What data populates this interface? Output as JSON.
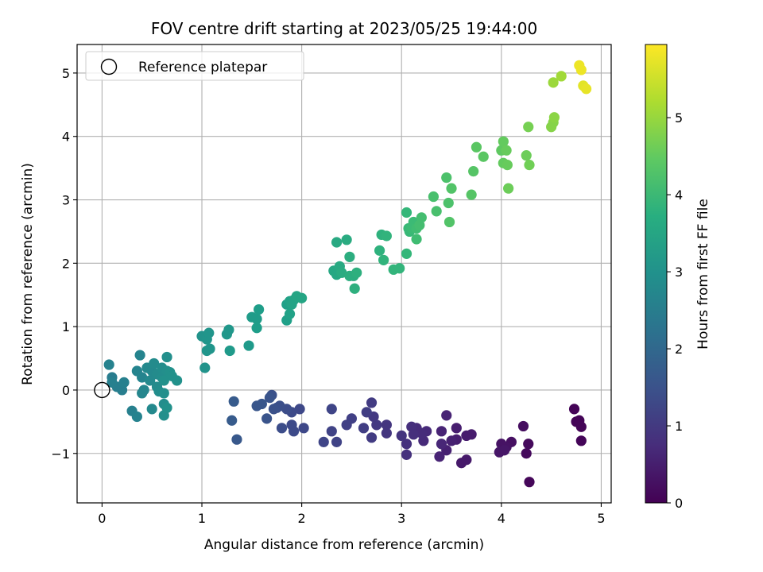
{
  "chart_data": {
    "type": "scatter",
    "title": "FOV centre drift starting at 2023/05/25 19:44:00",
    "xlabel": "Angular distance from reference (arcmin)",
    "ylabel": "Rotation from reference (arcmin)",
    "xlim": [
      -0.25,
      5.1
    ],
    "ylim": [
      -1.78,
      5.45
    ],
    "xticks": [
      0,
      1,
      2,
      3,
      4,
      5
    ],
    "yticks": [
      -1,
      0,
      1,
      2,
      3,
      4,
      5
    ],
    "grid": true,
    "colormap": "viridis",
    "colorbar": {
      "label": "Hours from first FF file",
      "range": [
        0,
        5.95
      ],
      "ticks": [
        0,
        1,
        2,
        3,
        4,
        5
      ]
    },
    "legend": {
      "location": "upper-left",
      "entries": [
        "Reference platepar"
      ]
    },
    "reference_point": {
      "x": 0,
      "y": 0
    },
    "points": [
      [
        4.73,
        -0.3,
        0.05
      ],
      [
        4.75,
        -0.5,
        0.05
      ],
      [
        4.78,
        -0.48,
        0.05
      ],
      [
        4.8,
        -0.58,
        0.06
      ],
      [
        4.8,
        -0.8,
        0.07
      ],
      [
        4.28,
        -1.45,
        0.1
      ],
      [
        4.25,
        -1.0,
        0.15
      ],
      [
        4.27,
        -0.85,
        0.15
      ],
      [
        4.22,
        -0.57,
        0.2
      ],
      [
        4.1,
        -0.82,
        0.25
      ],
      [
        4.05,
        -0.9,
        0.3
      ],
      [
        4.0,
        -0.85,
        0.3
      ],
      [
        3.98,
        -0.98,
        0.35
      ],
      [
        4.03,
        -0.95,
        0.35
      ],
      [
        3.6,
        -1.15,
        0.4
      ],
      [
        3.65,
        -1.1,
        0.4
      ],
      [
        3.7,
        -0.7,
        0.45
      ],
      [
        3.65,
        -0.72,
        0.45
      ],
      [
        3.55,
        -0.6,
        0.5
      ],
      [
        3.55,
        -0.78,
        0.5
      ],
      [
        3.5,
        -0.8,
        0.55
      ],
      [
        3.45,
        -0.95,
        0.55
      ],
      [
        3.45,
        -0.4,
        0.6
      ],
      [
        3.38,
        -1.05,
        0.6
      ],
      [
        3.4,
        -0.65,
        0.6
      ],
      [
        3.4,
        -0.85,
        0.65
      ],
      [
        3.25,
        -0.65,
        0.7
      ],
      [
        3.22,
        -0.8,
        0.7
      ],
      [
        3.2,
        -0.68,
        0.75
      ],
      [
        3.15,
        -0.6,
        0.75
      ],
      [
        3.1,
        -0.58,
        0.8
      ],
      [
        3.12,
        -0.7,
        0.8
      ],
      [
        3.05,
        -0.85,
        0.85
      ],
      [
        3.05,
        -1.02,
        0.85
      ],
      [
        3.0,
        -0.72,
        0.9
      ],
      [
        2.85,
        -0.68,
        0.95
      ],
      [
        2.85,
        -0.55,
        0.95
      ],
      [
        2.75,
        -0.55,
        1.0
      ],
      [
        2.72,
        -0.42,
        1.0
      ],
      [
        2.7,
        -0.75,
        1.05
      ],
      [
        2.7,
        -0.2,
        1.05
      ],
      [
        2.65,
        -0.35,
        1.1
      ],
      [
        2.62,
        -0.6,
        1.1
      ],
      [
        2.5,
        -0.45,
        1.15
      ],
      [
        2.45,
        -0.55,
        1.15
      ],
      [
        2.35,
        -0.82,
        1.2
      ],
      [
        2.3,
        -0.65,
        1.2
      ],
      [
        2.3,
        -0.3,
        1.25
      ],
      [
        2.22,
        -0.82,
        1.25
      ],
      [
        2.02,
        -0.6,
        1.3
      ],
      [
        1.98,
        -0.3,
        1.3
      ],
      [
        1.9,
        -0.35,
        1.35
      ],
      [
        1.9,
        -0.55,
        1.35
      ],
      [
        1.92,
        -0.65,
        1.35
      ],
      [
        1.85,
        -0.3,
        1.4
      ],
      [
        1.8,
        -0.6,
        1.4
      ],
      [
        1.78,
        -0.25,
        1.45
      ],
      [
        1.75,
        -0.28,
        1.45
      ],
      [
        1.72,
        -0.3,
        1.5
      ],
      [
        1.7,
        -0.08,
        1.5
      ],
      [
        1.68,
        -0.12,
        1.55
      ],
      [
        1.65,
        -0.45,
        1.55
      ],
      [
        1.6,
        -0.22,
        1.6
      ],
      [
        1.55,
        -0.25,
        1.6
      ],
      [
        1.35,
        -0.78,
        1.65
      ],
      [
        1.3,
        -0.48,
        1.7
      ],
      [
        1.32,
        -0.18,
        1.7
      ],
      [
        0.1,
        0.2,
        2.5
      ],
      [
        0.15,
        0.05,
        2.55
      ],
      [
        0.2,
        0.0,
        2.55
      ],
      [
        0.22,
        0.12,
        2.6
      ],
      [
        0.1,
        0.12,
        2.6
      ],
      [
        0.07,
        0.4,
        2.65
      ],
      [
        0.3,
        -0.33,
        2.6
      ],
      [
        0.35,
        -0.42,
        2.65
      ],
      [
        0.38,
        0.55,
        2.7
      ],
      [
        0.35,
        0.3,
        2.7
      ],
      [
        0.4,
        0.2,
        2.7
      ],
      [
        0.42,
        0.0,
        2.75
      ],
      [
        0.4,
        -0.05,
        2.75
      ],
      [
        0.45,
        0.35,
        2.8
      ],
      [
        0.48,
        0.15,
        2.8
      ],
      [
        0.5,
        0.3,
        2.8
      ],
      [
        0.5,
        -0.3,
        2.8
      ],
      [
        0.52,
        0.42,
        2.85
      ],
      [
        0.55,
        0.25,
        2.85
      ],
      [
        0.55,
        0.05,
        2.85
      ],
      [
        0.57,
        -0.02,
        2.9
      ],
      [
        0.6,
        0.2,
        2.9
      ],
      [
        0.6,
        0.35,
        2.9
      ],
      [
        0.62,
        -0.22,
        2.9
      ],
      [
        0.62,
        -0.4,
        2.95
      ],
      [
        0.62,
        -0.05,
        2.95
      ],
      [
        0.65,
        0.3,
        2.95
      ],
      [
        0.65,
        0.52,
        2.95
      ],
      [
        0.65,
        -0.28,
        3.0
      ],
      [
        0.68,
        0.28,
        3.0
      ],
      [
        0.7,
        0.22,
        3.0
      ],
      [
        0.75,
        0.15,
        3.0
      ],
      [
        0.62,
        0.15,
        3.0
      ],
      [
        1.03,
        0.35,
        3.05
      ],
      [
        1.0,
        0.85,
        3.05
      ],
      [
        1.05,
        0.8,
        3.1
      ],
      [
        1.05,
        0.62,
        3.1
      ],
      [
        1.07,
        0.9,
        3.1
      ],
      [
        1.08,
        0.65,
        3.1
      ],
      [
        1.25,
        0.88,
        3.15
      ],
      [
        1.27,
        0.95,
        3.15
      ],
      [
        1.28,
        0.62,
        3.2
      ],
      [
        1.47,
        0.7,
        3.2
      ],
      [
        1.5,
        1.15,
        3.25
      ],
      [
        1.55,
        1.12,
        3.25
      ],
      [
        1.55,
        0.98,
        3.3
      ],
      [
        1.57,
        1.27,
        3.3
      ],
      [
        1.85,
        1.35,
        3.35
      ],
      [
        1.85,
        1.1,
        3.35
      ],
      [
        1.88,
        1.4,
        3.4
      ],
      [
        1.88,
        1.2,
        3.4
      ],
      [
        1.9,
        1.35,
        3.45
      ],
      [
        1.92,
        1.42,
        3.45
      ],
      [
        1.95,
        1.48,
        3.5
      ],
      [
        2.0,
        1.45,
        3.5
      ],
      [
        2.32,
        1.88,
        3.55
      ],
      [
        2.35,
        1.82,
        3.55
      ],
      [
        2.35,
        2.33,
        3.6
      ],
      [
        2.38,
        1.95,
        3.6
      ],
      [
        2.4,
        1.85,
        3.65
      ],
      [
        2.45,
        2.37,
        3.65
      ],
      [
        2.48,
        1.8,
        3.7
      ],
      [
        2.48,
        2.1,
        3.7
      ],
      [
        2.52,
        1.8,
        3.7
      ],
      [
        2.53,
        1.6,
        3.75
      ],
      [
        2.55,
        1.85,
        3.75
      ],
      [
        2.78,
        2.2,
        3.8
      ],
      [
        2.8,
        2.45,
        3.8
      ],
      [
        2.82,
        2.05,
        3.85
      ],
      [
        2.85,
        2.43,
        3.85
      ],
      [
        2.92,
        1.9,
        3.9
      ],
      [
        2.98,
        1.92,
        3.9
      ],
      [
        3.05,
        2.15,
        3.95
      ],
      [
        3.05,
        2.8,
        3.95
      ],
      [
        3.07,
        2.55,
        4.0
      ],
      [
        3.08,
        2.5,
        4.0
      ],
      [
        3.1,
        2.55,
        4.05
      ],
      [
        3.12,
        2.65,
        4.05
      ],
      [
        3.15,
        2.38,
        4.1
      ],
      [
        3.15,
        2.55,
        4.1
      ],
      [
        3.18,
        2.6,
        4.15
      ],
      [
        3.2,
        2.72,
        4.15
      ],
      [
        3.32,
        3.05,
        4.2
      ],
      [
        3.35,
        2.82,
        4.2
      ],
      [
        3.45,
        3.35,
        4.25
      ],
      [
        3.47,
        2.95,
        4.25
      ],
      [
        3.48,
        2.65,
        4.3
      ],
      [
        3.5,
        3.18,
        4.3
      ],
      [
        3.7,
        3.08,
        4.35
      ],
      [
        3.72,
        3.45,
        4.35
      ],
      [
        3.75,
        3.83,
        4.4
      ],
      [
        3.82,
        3.68,
        4.4
      ],
      [
        4.0,
        3.78,
        4.45
      ],
      [
        4.02,
        3.92,
        4.5
      ],
      [
        4.02,
        3.58,
        4.5
      ],
      [
        4.05,
        3.78,
        4.55
      ],
      [
        4.06,
        3.55,
        4.55
      ],
      [
        4.07,
        3.18,
        4.6
      ],
      [
        4.25,
        3.7,
        4.6
      ],
      [
        4.28,
        3.55,
        4.65
      ],
      [
        4.27,
        4.15,
        4.7
      ],
      [
        4.5,
        4.15,
        4.85
      ],
      [
        4.52,
        4.22,
        4.85
      ],
      [
        4.53,
        4.3,
        4.9
      ],
      [
        4.52,
        4.85,
        5.05
      ],
      [
        4.6,
        4.95,
        5.1
      ],
      [
        4.78,
        5.12,
        5.8
      ],
      [
        4.8,
        5.05,
        5.8
      ],
      [
        4.82,
        4.8,
        5.7
      ],
      [
        4.85,
        4.75,
        5.75
      ]
    ]
  }
}
